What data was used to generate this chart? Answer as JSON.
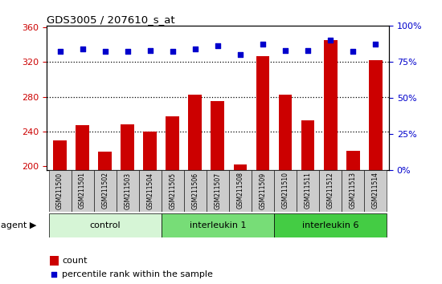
{
  "title": "GDS3005 / 207610_s_at",
  "samples": [
    "GSM211500",
    "GSM211501",
    "GSM211502",
    "GSM211503",
    "GSM211504",
    "GSM211505",
    "GSM211506",
    "GSM211507",
    "GSM211508",
    "GSM211509",
    "GSM211510",
    "GSM211511",
    "GSM211512",
    "GSM211513",
    "GSM211514"
  ],
  "counts": [
    230,
    247,
    217,
    248,
    240,
    257,
    282,
    275,
    202,
    327,
    282,
    253,
    345,
    218,
    322
  ],
  "percentile_ranks": [
    82,
    84,
    82,
    82,
    83,
    82,
    84,
    86,
    80,
    87,
    83,
    83,
    90,
    82,
    87
  ],
  "groups": [
    {
      "label": "control",
      "start": 0,
      "end": 5,
      "color": "#d6f5d6"
    },
    {
      "label": "interleukin 1",
      "start": 5,
      "end": 10,
      "color": "#77dd77"
    },
    {
      "label": "interleukin 6",
      "start": 10,
      "end": 15,
      "color": "#44cc44"
    }
  ],
  "ylim_left": [
    195,
    362
  ],
  "ylim_right": [
    0,
    100
  ],
  "yticks_left": [
    200,
    240,
    280,
    320,
    360
  ],
  "yticks_right": [
    0,
    25,
    50,
    75,
    100
  ],
  "bar_color": "#cc0000",
  "dot_color": "#0000cc",
  "bar_bottom": 195,
  "grid_lines": [
    240,
    280,
    320
  ],
  "tick_label_color_left": "#cc0000",
  "tick_label_color_right": "#0000cc",
  "agent_label": "agent",
  "legend_count_label": "count",
  "legend_pct_label": "percentile rank within the sample",
  "sample_box_color": "#cccccc",
  "fig_width": 5.5,
  "fig_height": 3.54,
  "dpi": 100
}
